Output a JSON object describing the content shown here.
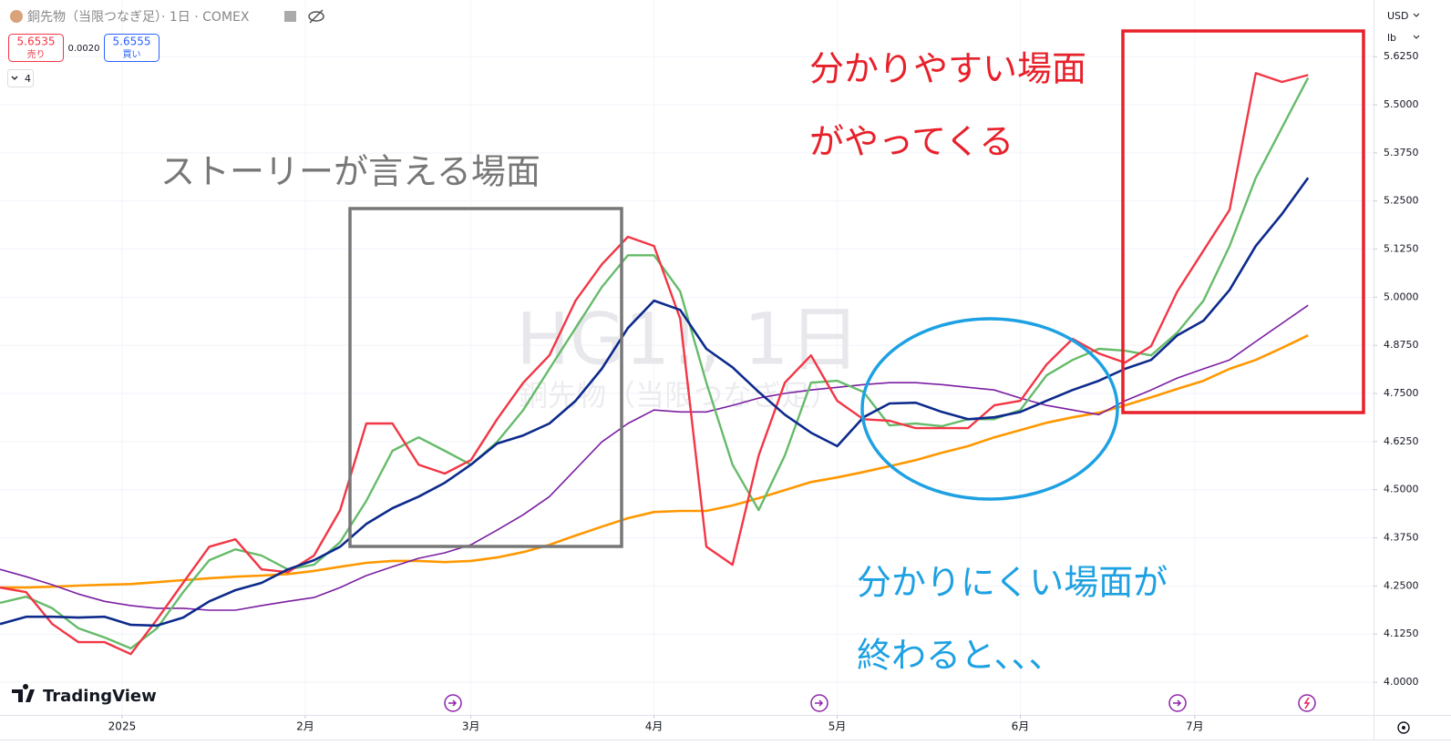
{
  "chart_data": {
    "type": "line",
    "title": "銅先物（当限つなぎ足）· 1日 · COMEX",
    "watermark": "HG1!, 1日",
    "watermark_subtitle": "銅先物（当限つなぎ足）",
    "sell_price": "5.6535",
    "sell_label": "売り",
    "spread": "0.0020",
    "buy_price": "5.6555",
    "buy_label": "買い",
    "indicator_count": "4",
    "currency": "USD",
    "unit": "lb",
    "logo": "TradingView",
    "annotations": {
      "easy_line1": "分かりやすい場面",
      "easy_line2": "がやってくる",
      "story": "ストーリーが言える場面",
      "hard_line1": "分かりにくい場面が",
      "hard_line2": "終わると、、、"
    },
    "grid": true,
    "xlim": [
      0,
      157.5
    ],
    "xticks": [
      {
        "value": 14,
        "label": "2025"
      },
      {
        "value": 35,
        "label": "2月"
      },
      {
        "value": 54,
        "label": "3月"
      },
      {
        "value": 75,
        "label": "4月"
      },
      {
        "value": 96,
        "label": "5月"
      },
      {
        "value": 117,
        "label": "6月"
      },
      {
        "value": 137,
        "label": "7月"
      }
    ],
    "ylim": [
      3.915,
      5.772
    ],
    "yticks": [
      {
        "value": 4,
        "label": "4.0000"
      },
      {
        "value": 4.125,
        "label": "4.1250"
      },
      {
        "value": 4.25,
        "label": "4.2500"
      },
      {
        "value": 4.375,
        "label": "4.3750"
      },
      {
        "value": 4.5,
        "label": "4.5000"
      },
      {
        "value": 4.625,
        "label": "4.6250"
      },
      {
        "value": 4.75,
        "label": "4.7500"
      },
      {
        "value": 4.875,
        "label": "4.8750"
      },
      {
        "value": 5,
        "label": "5.0000"
      },
      {
        "value": 5.125,
        "label": "5.1250"
      },
      {
        "value": 5.25,
        "label": "5.2500"
      },
      {
        "value": 5.375,
        "label": "5.3750"
      },
      {
        "value": 5.5,
        "label": "5.5000"
      },
      {
        "value": 5.625,
        "label": "5.6250"
      }
    ],
    "x": [
      0,
      3,
      6,
      9,
      12,
      15,
      18,
      21,
      24,
      27,
      30,
      33,
      36,
      39,
      42,
      45,
      48,
      51,
      54,
      57,
      60,
      63,
      66,
      69,
      72,
      75,
      78,
      81,
      84,
      87,
      90,
      93,
      96,
      99,
      102,
      105,
      108,
      111,
      114,
      117,
      120,
      123,
      126,
      129,
      132,
      135,
      138,
      141,
      144,
      147,
      150
    ],
    "series": [
      {
        "color": "#ff9800",
        "width": 2.6,
        "values": [
          4.246,
          4.246,
          4.248,
          4.251,
          4.253,
          4.255,
          4.26,
          4.265,
          4.27,
          4.274,
          4.277,
          4.281,
          4.289,
          4.3,
          4.31,
          4.315,
          4.315,
          4.312,
          4.315,
          4.324,
          4.338,
          4.357,
          4.381,
          4.404,
          4.426,
          4.442,
          4.445,
          4.445,
          4.459,
          4.478,
          4.499,
          4.52,
          4.532,
          4.546,
          4.561,
          4.577,
          4.596,
          4.613,
          4.636,
          4.655,
          4.674,
          4.688,
          4.7,
          4.719,
          4.74,
          4.762,
          4.783,
          4.814,
          4.837,
          4.868,
          4.901
        ]
      },
      {
        "color": "#7b1fa2",
        "width": 1.6,
        "values": [
          4.293,
          4.274,
          4.253,
          4.229,
          4.21,
          4.199,
          4.192,
          4.192,
          4.187,
          4.187,
          4.199,
          4.21,
          4.22,
          4.246,
          4.277,
          4.3,
          4.322,
          4.336,
          4.357,
          4.395,
          4.435,
          4.482,
          4.553,
          4.624,
          4.672,
          4.707,
          4.702,
          4.702,
          4.719,
          4.738,
          4.75,
          4.759,
          4.766,
          4.773,
          4.778,
          4.778,
          4.773,
          4.766,
          4.759,
          4.738,
          4.719,
          4.707,
          4.695,
          4.731,
          4.759,
          4.79,
          4.814,
          4.837,
          4.885,
          4.932,
          4.979
        ]
      },
      {
        "color": "#66bb6a",
        "width": 2.4,
        "values": [
          4.206,
          4.222,
          4.192,
          4.14,
          4.116,
          4.088,
          4.14,
          4.234,
          4.317,
          4.345,
          4.329,
          4.293,
          4.305,
          4.364,
          4.471,
          4.601,
          4.636,
          4.601,
          4.565,
          4.624,
          4.707,
          4.814,
          4.92,
          5.026,
          5.109,
          5.109,
          5.015,
          4.778,
          4.565,
          4.447,
          4.589,
          4.778,
          4.783,
          4.754,
          4.667,
          4.672,
          4.665,
          4.683,
          4.683,
          4.707,
          4.797,
          4.837,
          4.866,
          4.861,
          4.849,
          4.908,
          4.991,
          5.133,
          5.31,
          5.44,
          5.57
        ]
      },
      {
        "color": "#f23645",
        "width": 2.4,
        "values": [
          4.246,
          4.234,
          4.151,
          4.104,
          4.104,
          4.073,
          4.163,
          4.258,
          4.352,
          4.371,
          4.293,
          4.286,
          4.329,
          4.447,
          4.672,
          4.672,
          4.565,
          4.542,
          4.577,
          4.683,
          4.778,
          4.849,
          4.991,
          5.085,
          5.157,
          5.133,
          4.944,
          4.352,
          4.305,
          4.589,
          4.778,
          4.849,
          4.731,
          4.683,
          4.679,
          4.66,
          4.66,
          4.66,
          4.719,
          4.731,
          4.825,
          4.892,
          4.854,
          4.83,
          4.873,
          5.015,
          5.121,
          5.227,
          5.582,
          5.559,
          5.577
        ]
      },
      {
        "color": "#0d2a8c",
        "width": 2.6,
        "values": [
          4.151,
          4.17,
          4.17,
          4.168,
          4.17,
          4.149,
          4.147,
          4.168,
          4.21,
          4.239,
          4.258,
          4.293,
          4.317,
          4.352,
          4.411,
          4.452,
          4.482,
          4.518,
          4.565,
          4.62,
          4.641,
          4.672,
          4.731,
          4.814,
          4.92,
          4.991,
          4.967,
          4.866,
          4.818,
          4.754,
          4.695,
          4.648,
          4.613,
          4.688,
          4.724,
          4.726,
          4.702,
          4.683,
          4.688,
          4.702,
          4.731,
          4.759,
          4.783,
          4.814,
          4.837,
          4.901,
          4.939,
          5.019,
          5.133,
          5.216,
          5.31
        ]
      }
    ]
  }
}
